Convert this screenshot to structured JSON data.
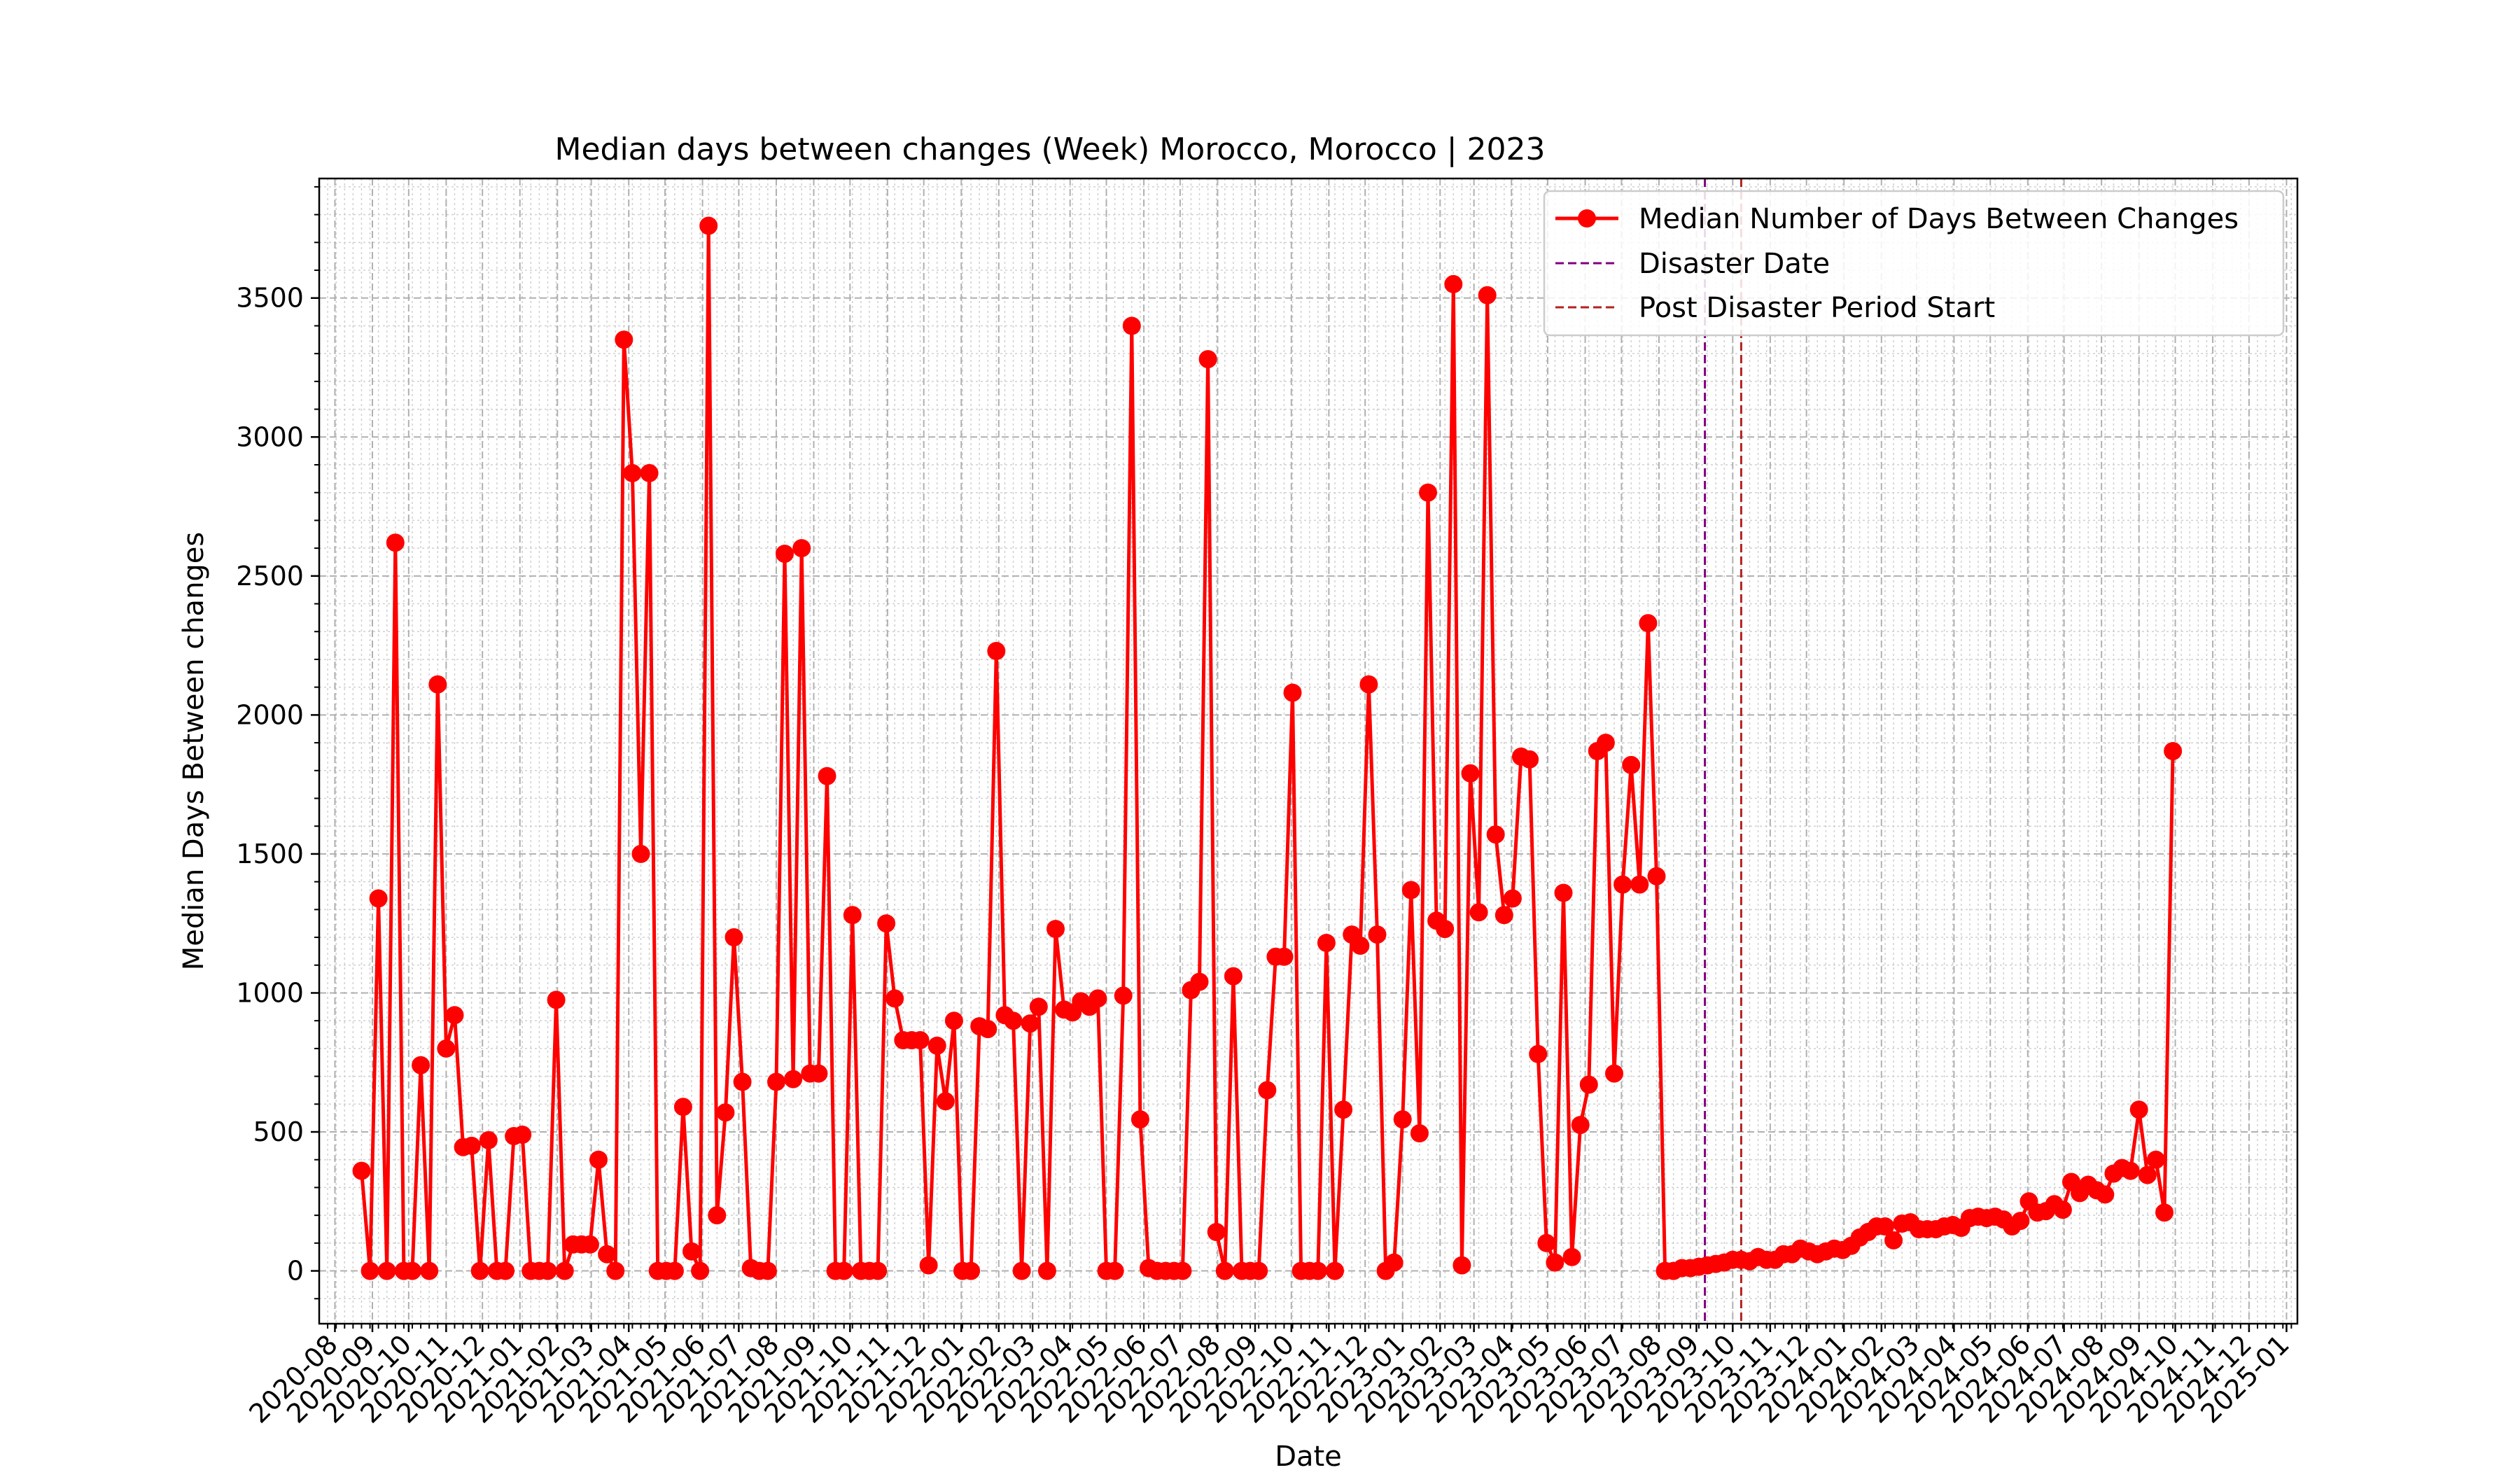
{
  "chart_data": {
    "type": "line",
    "title": "Median days between changes (Week) Morocco, Morocco | 2023",
    "xlabel": "Date",
    "ylabel": "Median Days Between changes",
    "xlim": [
      "2020-07-19",
      "2025-01-10"
    ],
    "ylim": [
      -190,
      3930
    ],
    "yticks": [
      0,
      500,
      1000,
      1500,
      2000,
      2500,
      3000,
      3500
    ],
    "xticks": [
      "2020-08",
      "2020-09",
      "2020-10",
      "2020-11",
      "2020-12",
      "2021-01",
      "2021-02",
      "2021-03",
      "2021-04",
      "2021-05",
      "2021-06",
      "2021-07",
      "2021-08",
      "2021-09",
      "2021-10",
      "2021-11",
      "2021-12",
      "2022-01",
      "2022-02",
      "2022-03",
      "2022-04",
      "2022-05",
      "2022-06",
      "2022-07",
      "2022-08",
      "2022-09",
      "2022-10",
      "2022-11",
      "2022-12",
      "2023-01",
      "2023-02",
      "2023-03",
      "2023-04",
      "2023-05",
      "2023-06",
      "2023-07",
      "2023-08",
      "2023-09",
      "2023-10",
      "2023-11",
      "2023-12",
      "2024-01",
      "2024-02",
      "2024-03",
      "2024-04",
      "2024-05",
      "2024-06",
      "2024-07",
      "2024-08",
      "2024-09",
      "2024-10",
      "2024-11",
      "2024-12",
      "2025-01"
    ],
    "grid": true,
    "legend_position": "top-right",
    "colors": {
      "series": "#ff0000",
      "disaster": "#800080",
      "post_disaster": "#b22222"
    },
    "series": [
      {
        "name": "Median Number of Days Between Changes",
        "start_date": "2020-08-23",
        "interval_days": 7,
        "values": [
          360,
          0,
          1340,
          0,
          2620,
          0,
          0,
          740,
          0,
          2110,
          800,
          920,
          445,
          450,
          0,
          470,
          0,
          0,
          485,
          490,
          0,
          0,
          0,
          975,
          0,
          95,
          95,
          95,
          400,
          60,
          0,
          3350,
          2870,
          1500,
          2870,
          0,
          0,
          0,
          590,
          70,
          0,
          3760,
          200,
          570,
          1200,
          680,
          10,
          0,
          0,
          680,
          2580,
          690,
          2600,
          710,
          710,
          1780,
          0,
          0,
          1280,
          0,
          0,
          0,
          1250,
          980,
          830,
          830,
          830,
          20,
          810,
          610,
          900,
          0,
          0,
          880,
          870,
          2230,
          920,
          900,
          0,
          890,
          950,
          0,
          1230,
          940,
          930,
          970,
          950,
          980,
          0,
          0,
          990,
          3400,
          545,
          10,
          0,
          0,
          0,
          0,
          1010,
          1040,
          3280,
          140,
          0,
          1060,
          0,
          0,
          0,
          650,
          1130,
          1130,
          2080,
          0,
          0,
          0,
          1180,
          0,
          580,
          1210,
          1170,
          2110,
          1210,
          0,
          30,
          545,
          1370,
          495,
          2800,
          1260,
          1230,
          3550,
          20,
          1790,
          1290,
          3510,
          1570,
          1280,
          1340,
          1850,
          1840,
          780,
          100,
          30,
          1360,
          50,
          525,
          670,
          1870,
          1900,
          710,
          1390,
          1820,
          1390,
          2330,
          1420,
          0,
          0,
          10,
          10,
          15,
          20,
          25,
          30,
          40,
          40,
          35,
          50,
          40,
          40,
          60,
          60,
          80,
          70,
          60,
          70,
          80,
          75,
          90,
          120,
          140,
          160,
          160,
          110,
          170,
          175,
          150,
          150,
          150,
          160,
          165,
          155,
          190,
          195,
          190,
          195,
          185,
          160,
          180,
          250,
          210,
          215,
          240,
          220,
          320,
          280,
          310,
          290,
          275,
          350,
          370,
          360,
          580,
          345,
          400,
          210,
          1870
        ]
      }
    ],
    "vlines": [
      {
        "name": "Disaster Date",
        "date": "2023-09-08",
        "style": "dashed"
      },
      {
        "name": "Post Disaster Period Start",
        "date": "2023-10-08",
        "style": "dashed"
      }
    ]
  }
}
